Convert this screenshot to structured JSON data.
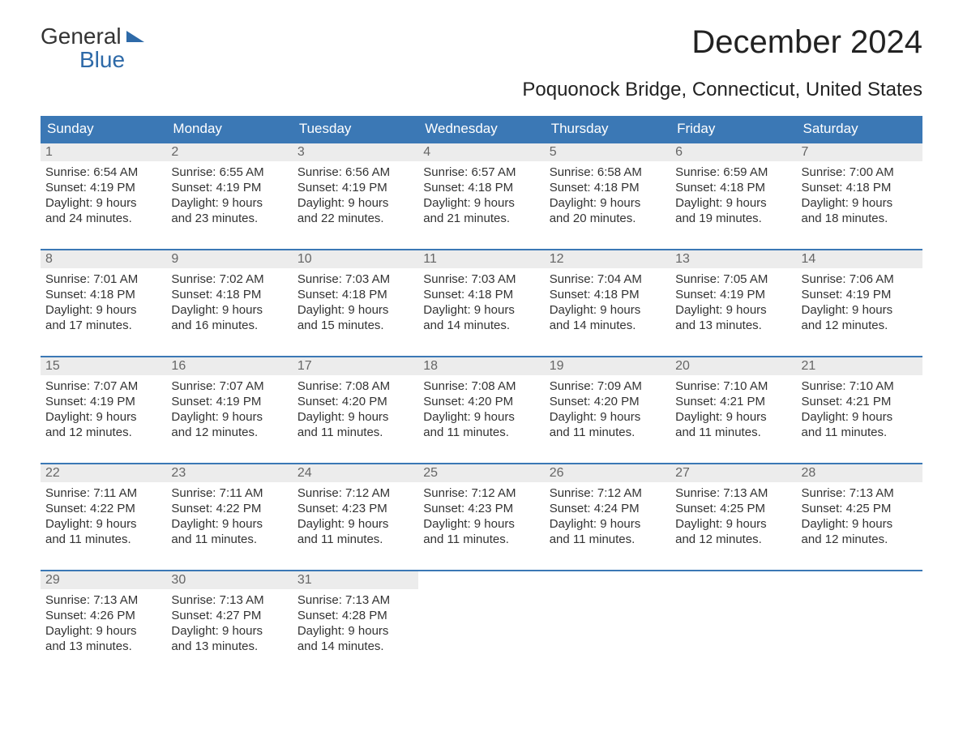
{
  "colors": {
    "header_bg": "#3b78b5",
    "header_text": "#ffffff",
    "daynum_bg": "#ececec",
    "daynum_text": "#666666",
    "body_text": "#333333",
    "week_border": "#3b78b5",
    "page_bg": "#ffffff",
    "logo_blue": "#2e6aa8"
  },
  "logo": {
    "line1": "General",
    "line2": "Blue"
  },
  "title": "December 2024",
  "subtitle": "Poquonock Bridge, Connecticut, United States",
  "day_headers": [
    "Sunday",
    "Monday",
    "Tuesday",
    "Wednesday",
    "Thursday",
    "Friday",
    "Saturday"
  ],
  "weeks": [
    [
      {
        "n": "1",
        "sunrise": "Sunrise: 6:54 AM",
        "sunset": "Sunset: 4:19 PM",
        "dl1": "Daylight: 9 hours",
        "dl2": "and 24 minutes."
      },
      {
        "n": "2",
        "sunrise": "Sunrise: 6:55 AM",
        "sunset": "Sunset: 4:19 PM",
        "dl1": "Daylight: 9 hours",
        "dl2": "and 23 minutes."
      },
      {
        "n": "3",
        "sunrise": "Sunrise: 6:56 AM",
        "sunset": "Sunset: 4:19 PM",
        "dl1": "Daylight: 9 hours",
        "dl2": "and 22 minutes."
      },
      {
        "n": "4",
        "sunrise": "Sunrise: 6:57 AM",
        "sunset": "Sunset: 4:18 PM",
        "dl1": "Daylight: 9 hours",
        "dl2": "and 21 minutes."
      },
      {
        "n": "5",
        "sunrise": "Sunrise: 6:58 AM",
        "sunset": "Sunset: 4:18 PM",
        "dl1": "Daylight: 9 hours",
        "dl2": "and 20 minutes."
      },
      {
        "n": "6",
        "sunrise": "Sunrise: 6:59 AM",
        "sunset": "Sunset: 4:18 PM",
        "dl1": "Daylight: 9 hours",
        "dl2": "and 19 minutes."
      },
      {
        "n": "7",
        "sunrise": "Sunrise: 7:00 AM",
        "sunset": "Sunset: 4:18 PM",
        "dl1": "Daylight: 9 hours",
        "dl2": "and 18 minutes."
      }
    ],
    [
      {
        "n": "8",
        "sunrise": "Sunrise: 7:01 AM",
        "sunset": "Sunset: 4:18 PM",
        "dl1": "Daylight: 9 hours",
        "dl2": "and 17 minutes."
      },
      {
        "n": "9",
        "sunrise": "Sunrise: 7:02 AM",
        "sunset": "Sunset: 4:18 PM",
        "dl1": "Daylight: 9 hours",
        "dl2": "and 16 minutes."
      },
      {
        "n": "10",
        "sunrise": "Sunrise: 7:03 AM",
        "sunset": "Sunset: 4:18 PM",
        "dl1": "Daylight: 9 hours",
        "dl2": "and 15 minutes."
      },
      {
        "n": "11",
        "sunrise": "Sunrise: 7:03 AM",
        "sunset": "Sunset: 4:18 PM",
        "dl1": "Daylight: 9 hours",
        "dl2": "and 14 minutes."
      },
      {
        "n": "12",
        "sunrise": "Sunrise: 7:04 AM",
        "sunset": "Sunset: 4:18 PM",
        "dl1": "Daylight: 9 hours",
        "dl2": "and 14 minutes."
      },
      {
        "n": "13",
        "sunrise": "Sunrise: 7:05 AM",
        "sunset": "Sunset: 4:19 PM",
        "dl1": "Daylight: 9 hours",
        "dl2": "and 13 minutes."
      },
      {
        "n": "14",
        "sunrise": "Sunrise: 7:06 AM",
        "sunset": "Sunset: 4:19 PM",
        "dl1": "Daylight: 9 hours",
        "dl2": "and 12 minutes."
      }
    ],
    [
      {
        "n": "15",
        "sunrise": "Sunrise: 7:07 AM",
        "sunset": "Sunset: 4:19 PM",
        "dl1": "Daylight: 9 hours",
        "dl2": "and 12 minutes."
      },
      {
        "n": "16",
        "sunrise": "Sunrise: 7:07 AM",
        "sunset": "Sunset: 4:19 PM",
        "dl1": "Daylight: 9 hours",
        "dl2": "and 12 minutes."
      },
      {
        "n": "17",
        "sunrise": "Sunrise: 7:08 AM",
        "sunset": "Sunset: 4:20 PM",
        "dl1": "Daylight: 9 hours",
        "dl2": "and 11 minutes."
      },
      {
        "n": "18",
        "sunrise": "Sunrise: 7:08 AM",
        "sunset": "Sunset: 4:20 PM",
        "dl1": "Daylight: 9 hours",
        "dl2": "and 11 minutes."
      },
      {
        "n": "19",
        "sunrise": "Sunrise: 7:09 AM",
        "sunset": "Sunset: 4:20 PM",
        "dl1": "Daylight: 9 hours",
        "dl2": "and 11 minutes."
      },
      {
        "n": "20",
        "sunrise": "Sunrise: 7:10 AM",
        "sunset": "Sunset: 4:21 PM",
        "dl1": "Daylight: 9 hours",
        "dl2": "and 11 minutes."
      },
      {
        "n": "21",
        "sunrise": "Sunrise: 7:10 AM",
        "sunset": "Sunset: 4:21 PM",
        "dl1": "Daylight: 9 hours",
        "dl2": "and 11 minutes."
      }
    ],
    [
      {
        "n": "22",
        "sunrise": "Sunrise: 7:11 AM",
        "sunset": "Sunset: 4:22 PM",
        "dl1": "Daylight: 9 hours",
        "dl2": "and 11 minutes."
      },
      {
        "n": "23",
        "sunrise": "Sunrise: 7:11 AM",
        "sunset": "Sunset: 4:22 PM",
        "dl1": "Daylight: 9 hours",
        "dl2": "and 11 minutes."
      },
      {
        "n": "24",
        "sunrise": "Sunrise: 7:12 AM",
        "sunset": "Sunset: 4:23 PM",
        "dl1": "Daylight: 9 hours",
        "dl2": "and 11 minutes."
      },
      {
        "n": "25",
        "sunrise": "Sunrise: 7:12 AM",
        "sunset": "Sunset: 4:23 PM",
        "dl1": "Daylight: 9 hours",
        "dl2": "and 11 minutes."
      },
      {
        "n": "26",
        "sunrise": "Sunrise: 7:12 AM",
        "sunset": "Sunset: 4:24 PM",
        "dl1": "Daylight: 9 hours",
        "dl2": "and 11 minutes."
      },
      {
        "n": "27",
        "sunrise": "Sunrise: 7:13 AM",
        "sunset": "Sunset: 4:25 PM",
        "dl1": "Daylight: 9 hours",
        "dl2": "and 12 minutes."
      },
      {
        "n": "28",
        "sunrise": "Sunrise: 7:13 AM",
        "sunset": "Sunset: 4:25 PM",
        "dl1": "Daylight: 9 hours",
        "dl2": "and 12 minutes."
      }
    ],
    [
      {
        "n": "29",
        "sunrise": "Sunrise: 7:13 AM",
        "sunset": "Sunset: 4:26 PM",
        "dl1": "Daylight: 9 hours",
        "dl2": "and 13 minutes."
      },
      {
        "n": "30",
        "sunrise": "Sunrise: 7:13 AM",
        "sunset": "Sunset: 4:27 PM",
        "dl1": "Daylight: 9 hours",
        "dl2": "and 13 minutes."
      },
      {
        "n": "31",
        "sunrise": "Sunrise: 7:13 AM",
        "sunset": "Sunset: 4:28 PM",
        "dl1": "Daylight: 9 hours",
        "dl2": "and 14 minutes."
      },
      null,
      null,
      null,
      null
    ]
  ]
}
